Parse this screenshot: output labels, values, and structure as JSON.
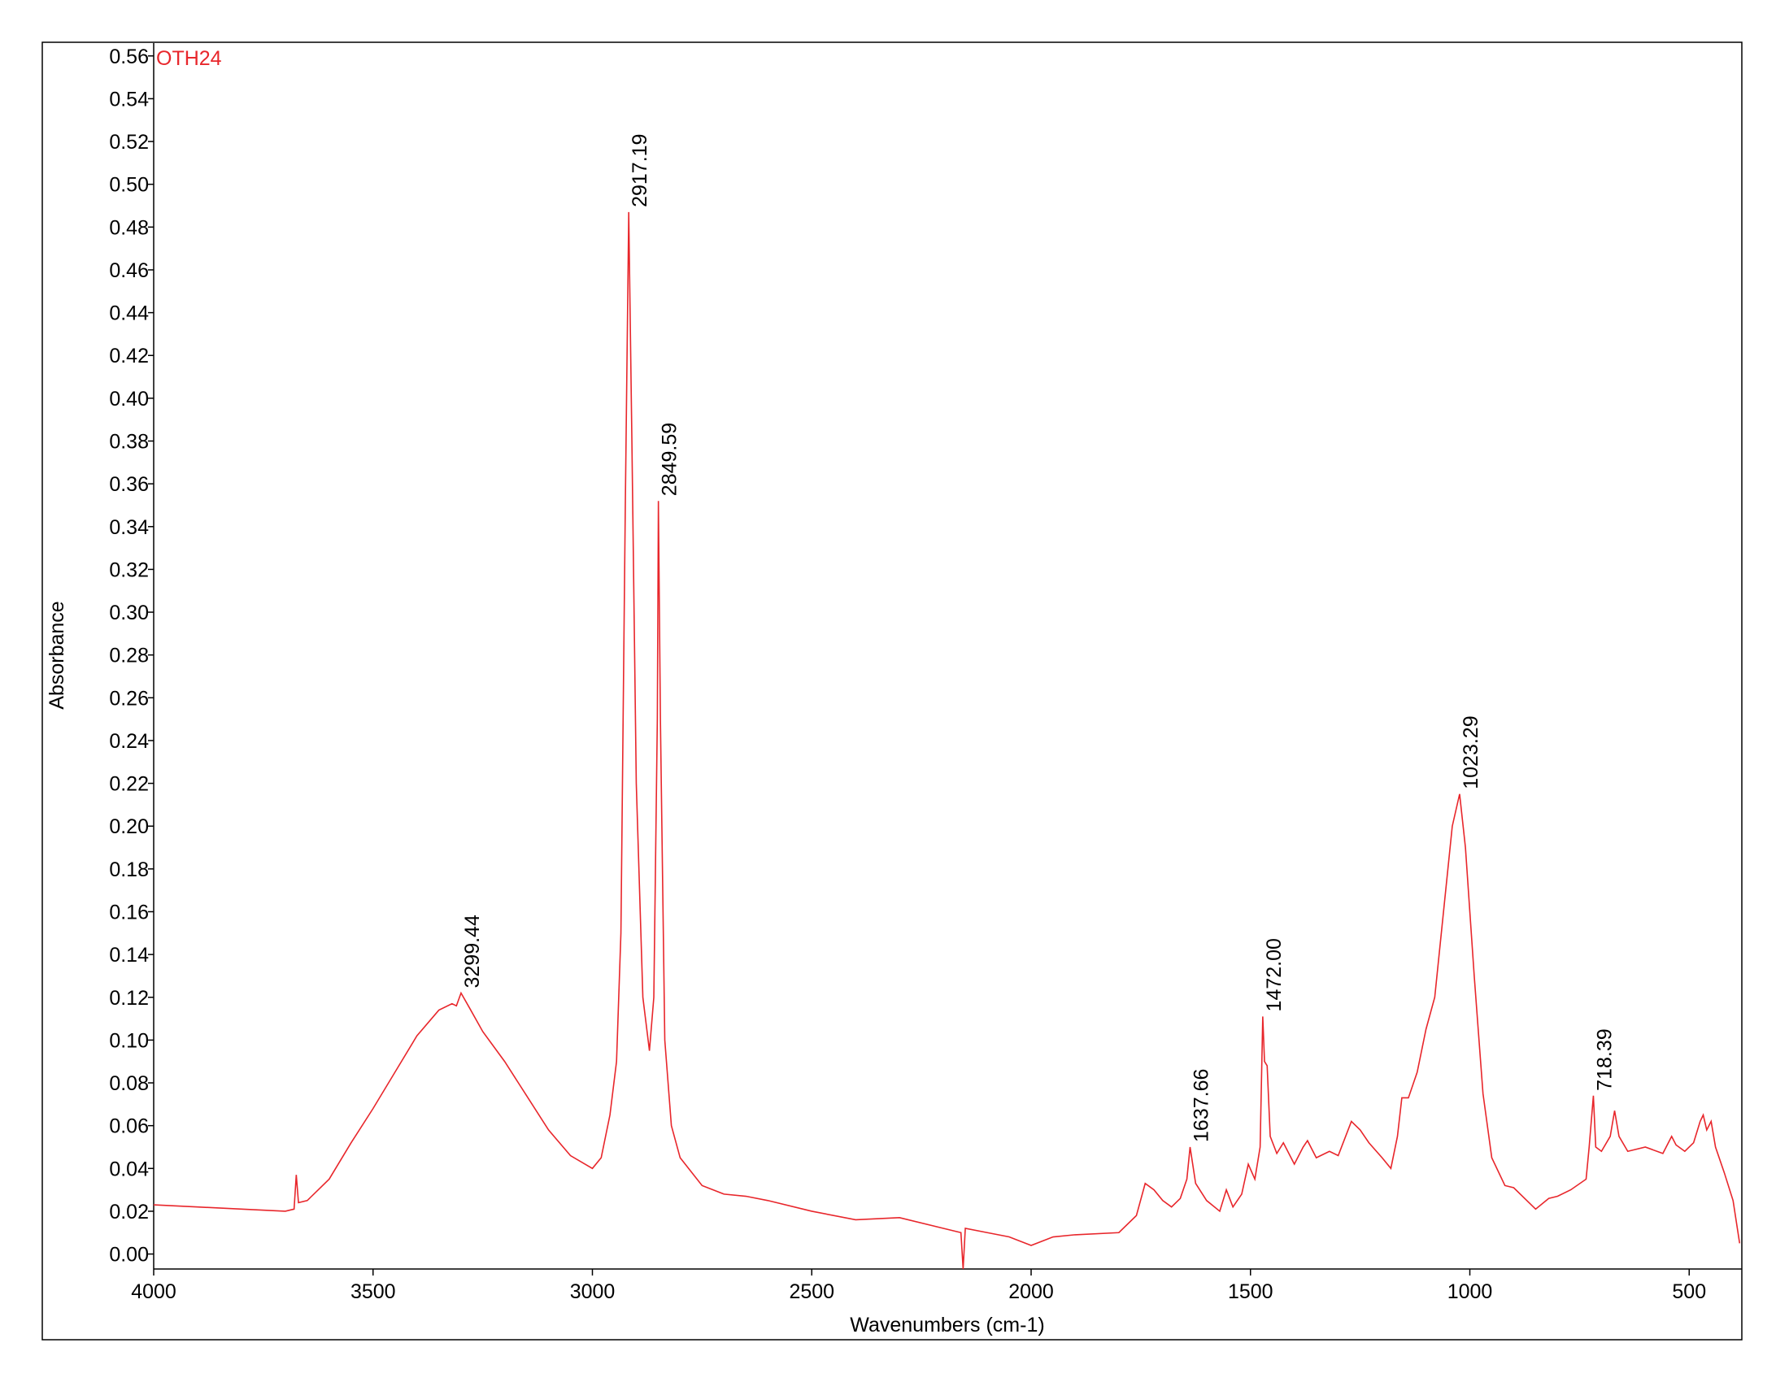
{
  "chart_data": {
    "type": "line",
    "xlabel": "Wavenumbers (cm-1)",
    "ylabel": "Absorbance",
    "xlim": [
      4000,
      380
    ],
    "ylim": [
      -0.007,
      0.566
    ],
    "xticks": [
      4000,
      3500,
      3000,
      2500,
      2000,
      1500,
      1000,
      500
    ],
    "yticks": [
      {
        "value": 0,
        "label": "0.00"
      },
      {
        "value": 0.02,
        "label": "0.02"
      },
      {
        "value": 0.04,
        "label": "0.04"
      },
      {
        "value": 0.06,
        "label": "0.06"
      },
      {
        "value": 0.08,
        "label": "0.08"
      },
      {
        "value": 0.1,
        "label": "0.10"
      },
      {
        "value": 0.12,
        "label": "0.12"
      },
      {
        "value": 0.14,
        "label": "0.14"
      },
      {
        "value": 0.16,
        "label": "0.16"
      },
      {
        "value": 0.18,
        "label": "0.18"
      },
      {
        "value": 0.2,
        "label": "0.20"
      },
      {
        "value": 0.22,
        "label": "0.22"
      },
      {
        "value": 0.24,
        "label": "0.24"
      },
      {
        "value": 0.26,
        "label": "0.26"
      },
      {
        "value": 0.28,
        "label": "0.28"
      },
      {
        "value": 0.3,
        "label": "0.30"
      },
      {
        "value": 0.32,
        "label": "0.32"
      },
      {
        "value": 0.34,
        "label": "0.34"
      },
      {
        "value": 0.36,
        "label": "0.36"
      },
      {
        "value": 0.38,
        "label": "0.38"
      },
      {
        "value": 0.4,
        "label": "0.40"
      },
      {
        "value": 0.42,
        "label": "0.42"
      },
      {
        "value": 0.44,
        "label": "0.44"
      },
      {
        "value": 0.46,
        "label": "0.46"
      },
      {
        "value": 0.48,
        "label": "0.48"
      },
      {
        "value": 0.5,
        "label": "0.50"
      },
      {
        "value": 0.52,
        "label": "0.52"
      },
      {
        "value": 0.54,
        "label": "0.54"
      },
      {
        "value": 0.56,
        "label": "0.56"
      }
    ],
    "x": [
      4000,
      3900,
      3800,
      3700,
      3680,
      3675,
      3670,
      3650,
      3600,
      3550,
      3500,
      3450,
      3400,
      3350,
      3320,
      3310,
      3299.44,
      3280,
      3250,
      3200,
      3150,
      3100,
      3050,
      3000,
      2980,
      2960,
      2945,
      2935,
      2925,
      2917.19,
      2910,
      2900,
      2885,
      2870,
      2860,
      2852,
      2849.59,
      2845,
      2835,
      2820,
      2800,
      2750,
      2700,
      2650,
      2600,
      2500,
      2400,
      2300,
      2200,
      2160,
      2155,
      2150,
      2100,
      2050,
      2000,
      1950,
      1900,
      1800,
      1760,
      1740,
      1720,
      1700,
      1680,
      1660,
      1645,
      1637.66,
      1625,
      1600,
      1570,
      1555,
      1540,
      1520,
      1505,
      1490,
      1478,
      1472,
      1468,
      1462,
      1455,
      1440,
      1425,
      1400,
      1380,
      1370,
      1350,
      1320,
      1300,
      1270,
      1250,
      1230,
      1200,
      1180,
      1165,
      1155,
      1140,
      1120,
      1100,
      1080,
      1060,
      1040,
      1023.29,
      1010,
      990,
      970,
      950,
      920,
      900,
      870,
      850,
      820,
      800,
      770,
      735,
      728,
      722,
      718.39,
      713,
      700,
      680,
      670,
      660,
      640,
      600,
      560,
      540,
      530,
      510,
      490,
      475,
      468,
      460,
      450,
      440,
      420,
      400,
      385
    ],
    "series": [
      {
        "name": "OTH24",
        "color": "#e8262b",
        "values": [
          0.023,
          0.022,
          0.021,
          0.02,
          0.021,
          0.037,
          0.024,
          0.025,
          0.035,
          0.052,
          0.068,
          0.085,
          0.102,
          0.114,
          0.117,
          0.116,
          0.122,
          0.115,
          0.104,
          0.09,
          0.074,
          0.058,
          0.046,
          0.04,
          0.045,
          0.065,
          0.09,
          0.15,
          0.35,
          0.487,
          0.38,
          0.22,
          0.12,
          0.095,
          0.12,
          0.25,
          0.352,
          0.25,
          0.1,
          0.06,
          0.045,
          0.032,
          0.028,
          0.027,
          0.025,
          0.02,
          0.016,
          0.017,
          0.012,
          0.01,
          -0.007,
          0.012,
          0.01,
          0.008,
          0.004,
          0.008,
          0.009,
          0.01,
          0.018,
          0.033,
          0.03,
          0.025,
          0.022,
          0.026,
          0.035,
          0.05,
          0.033,
          0.025,
          0.02,
          0.03,
          0.022,
          0.028,
          0.042,
          0.035,
          0.05,
          0.111,
          0.09,
          0.088,
          0.055,
          0.047,
          0.052,
          0.042,
          0.05,
          0.053,
          0.045,
          0.048,
          0.046,
          0.062,
          0.058,
          0.052,
          0.045,
          0.04,
          0.055,
          0.073,
          0.073,
          0.085,
          0.105,
          0.12,
          0.16,
          0.2,
          0.215,
          0.19,
          0.13,
          0.075,
          0.045,
          0.032,
          0.031,
          0.025,
          0.021,
          0.026,
          0.027,
          0.03,
          0.035,
          0.05,
          0.065,
          0.074,
          0.05,
          0.048,
          0.055,
          0.067,
          0.055,
          0.048,
          0.05,
          0.047,
          0.055,
          0.051,
          0.048,
          0.052,
          0.062,
          0.065,
          0.058,
          0.062,
          0.05,
          0.038,
          0.025,
          0.005
        ]
      }
    ],
    "annotations": [
      {
        "text": "3299.44",
        "x": 3299.44,
        "y": 0.122
      },
      {
        "text": "2917.19",
        "x": 2917.19,
        "y": 0.487
      },
      {
        "text": "2849.59",
        "x": 2849.59,
        "y": 0.352
      },
      {
        "text": "1637.66",
        "x": 1637.66,
        "y": 0.05
      },
      {
        "text": "1472.00",
        "x": 1472,
        "y": 0.111
      },
      {
        "text": "1023.29",
        "x": 1023.29,
        "y": 0.215
      },
      {
        "text": "718.39",
        "x": 718.39,
        "y": 0.074
      }
    ]
  }
}
